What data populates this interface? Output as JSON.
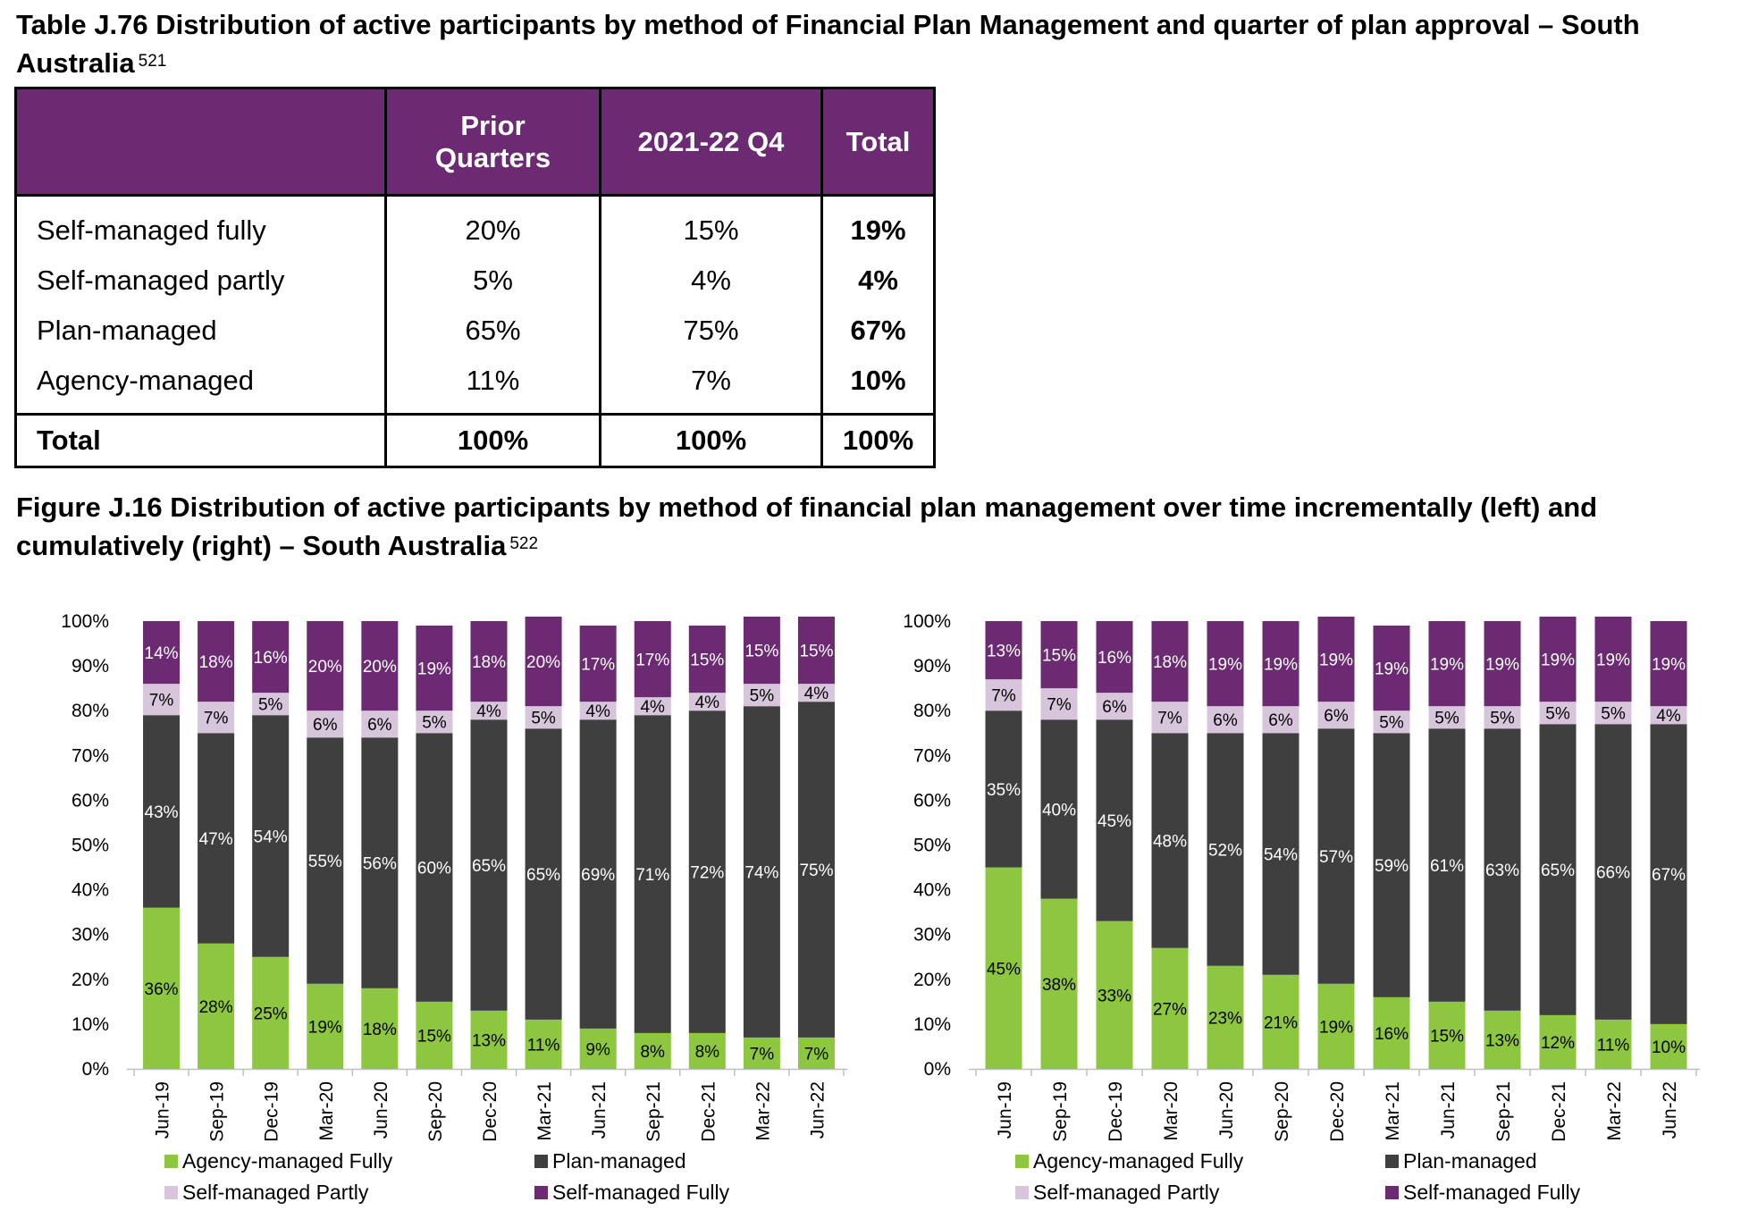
{
  "table_caption": {
    "text": "Table J.76 Distribution of active participants by method of Financial Plan Management and quarter of plan approval – South Australia",
    "footnote": "521"
  },
  "table": {
    "headers": [
      "",
      "Prior Quarters",
      "2021-22 Q4",
      "Total"
    ],
    "rows": [
      {
        "label": "Self-managed fully",
        "prior": "20%",
        "q4": "15%",
        "total": "19%"
      },
      {
        "label": "Self-managed partly",
        "prior": "5%",
        "q4": "4%",
        "total": "4%"
      },
      {
        "label": "Plan-managed",
        "prior": "65%",
        "q4": "75%",
        "total": "67%"
      },
      {
        "label": "Agency-managed",
        "prior": "11%",
        "q4": "7%",
        "total": "10%"
      }
    ],
    "total_row": {
      "label": "Total",
      "prior": "100%",
      "q4": "100%",
      "total": "100%"
    }
  },
  "figure_caption": {
    "text": "Figure J.16 Distribution of active participants by method of financial plan management over time incrementally (left) and cumulatively (right) – South Australia",
    "footnote": "522"
  },
  "colors": {
    "agency": "#8dc63f",
    "plan": "#3f3f3f",
    "partly": "#d7c6db",
    "fully": "#6b2a72",
    "header_bg": "#6b2a72"
  },
  "chart_data": [
    {
      "type": "bar",
      "stacked": true,
      "title": "",
      "ylim": [
        0,
        100
      ],
      "y_ticks": [
        "0%",
        "10%",
        "20%",
        "30%",
        "40%",
        "50%",
        "60%",
        "70%",
        "80%",
        "90%",
        "100%"
      ],
      "categories": [
        "Jun-19",
        "Sep-19",
        "Dec-19",
        "Mar-20",
        "Jun-20",
        "Sep-20",
        "Dec-20",
        "Mar-21",
        "Jun-21",
        "Sep-21",
        "Dec-21",
        "Mar-22",
        "Jun-22"
      ],
      "series": [
        {
          "name": "Agency-managed Fully",
          "values": [
            36,
            28,
            25,
            19,
            18,
            15,
            13,
            11,
            9,
            8,
            8,
            7,
            7
          ]
        },
        {
          "name": "Plan-managed",
          "values": [
            43,
            47,
            54,
            55,
            56,
            60,
            65,
            65,
            69,
            71,
            72,
            74,
            75
          ]
        },
        {
          "name": "Self-managed Partly",
          "values": [
            7,
            7,
            5,
            6,
            6,
            5,
            4,
            5,
            4,
            4,
            4,
            5,
            4
          ]
        },
        {
          "name": "Self-managed Fully",
          "values": [
            14,
            18,
            16,
            20,
            20,
            19,
            18,
            20,
            17,
            17,
            15,
            15,
            15
          ]
        }
      ],
      "legend": "bottom"
    },
    {
      "type": "bar",
      "stacked": true,
      "title": "",
      "ylim": [
        0,
        100
      ],
      "y_ticks": [
        "0%",
        "10%",
        "20%",
        "30%",
        "40%",
        "50%",
        "60%",
        "70%",
        "80%",
        "90%",
        "100%"
      ],
      "categories": [
        "Jun-19",
        "Sep-19",
        "Dec-19",
        "Mar-20",
        "Jun-20",
        "Sep-20",
        "Dec-20",
        "Mar-21",
        "Jun-21",
        "Sep-21",
        "Dec-21",
        "Mar-22",
        "Jun-22"
      ],
      "series": [
        {
          "name": "Agency-managed Fully",
          "values": [
            45,
            38,
            33,
            27,
            23,
            21,
            19,
            16,
            15,
            13,
            12,
            11,
            10
          ]
        },
        {
          "name": "Plan-managed",
          "values": [
            35,
            40,
            45,
            48,
            52,
            54,
            57,
            59,
            61,
            63,
            65,
            66,
            67
          ]
        },
        {
          "name": "Self-managed Partly",
          "values": [
            7,
            7,
            6,
            7,
            6,
            6,
            6,
            5,
            5,
            5,
            5,
            5,
            4
          ]
        },
        {
          "name": "Self-managed Fully",
          "values": [
            13,
            15,
            16,
            18,
            19,
            19,
            19,
            19,
            19,
            19,
            19,
            19,
            19
          ]
        }
      ],
      "legend": "bottom"
    }
  ]
}
